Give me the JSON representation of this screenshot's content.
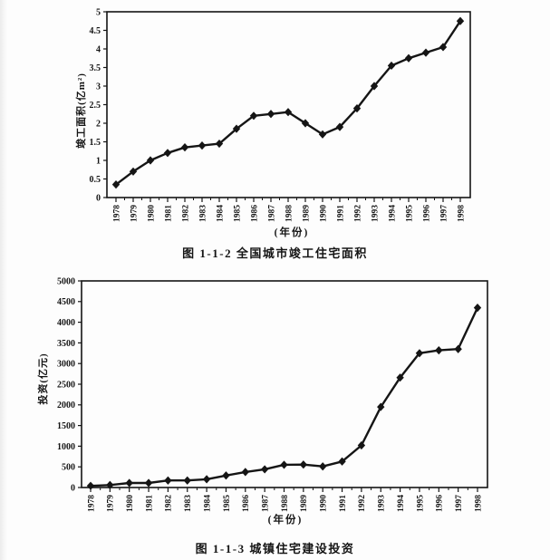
{
  "page": {
    "background": "#fdfdfd",
    "ink": "#151515"
  },
  "chart_data": [
    {
      "type": "line",
      "title": "图 1-1-2  全国城市竣工住宅面积",
      "xlabel": "(年份)",
      "ylabel": "竣工面积(亿m²)",
      "categories": [
        "1978",
        "1979",
        "1980",
        "1981",
        "1982",
        "1983",
        "1984",
        "1985",
        "1986",
        "1987",
        "1988",
        "1989",
        "1990",
        "1991",
        "1992",
        "1993",
        "1994",
        "1995",
        "1996",
        "1997",
        "1998"
      ],
      "values": [
        0.35,
        0.7,
        1.0,
        1.2,
        1.35,
        1.4,
        1.45,
        1.85,
        2.2,
        2.25,
        2.3,
        2.0,
        1.7,
        1.9,
        2.4,
        3.0,
        3.55,
        3.75,
        3.9,
        4.05,
        4.75
      ],
      "ylim": [
        0,
        5
      ],
      "ytick_step": 0.5,
      "grid": false,
      "legend": "none",
      "marker": "diamond",
      "line_color": "#151515"
    },
    {
      "type": "line",
      "title": "图 1-1-3  城镇住宅建设投资",
      "xlabel": "(年份)",
      "ylabel": "投资(亿元)",
      "categories": [
        "1978",
        "1979",
        "1980",
        "1981",
        "1982",
        "1983",
        "1984",
        "1985",
        "1986",
        "1987",
        "1988",
        "1989",
        "1990",
        "1991",
        "1992",
        "1993",
        "1994",
        "1995",
        "1996",
        "1997",
        "1998"
      ],
      "values": [
        40,
        60,
        110,
        110,
        170,
        170,
        200,
        290,
        375,
        440,
        550,
        555,
        510,
        630,
        1020,
        1950,
        2660,
        3250,
        3320,
        3350,
        4350
      ],
      "ylim": [
        0,
        5000
      ],
      "ytick_step": 500,
      "grid": false,
      "legend": "none",
      "marker": "diamond",
      "line_color": "#151515"
    }
  ]
}
